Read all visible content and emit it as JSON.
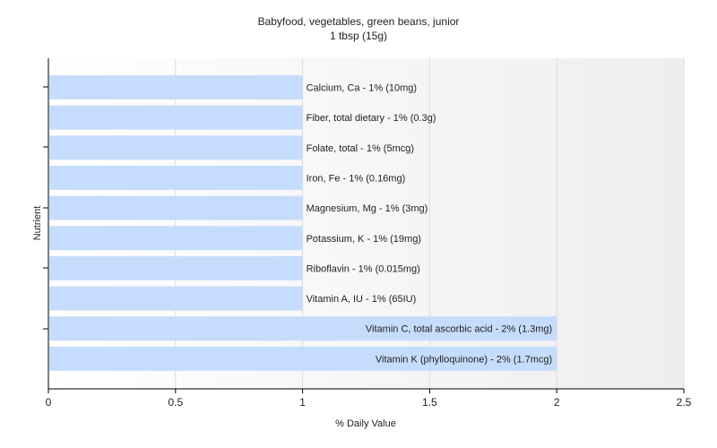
{
  "chart_data": {
    "type": "bar",
    "orientation": "horizontal",
    "title": "Babyfood, vegetables, green beans, junior",
    "subtitle": "1 tbsp (15g)",
    "xlabel": "% Daily Value",
    "ylabel": "Nutrient",
    "xlim": [
      0,
      2.5
    ],
    "xticks": [
      "0",
      "0.5",
      "1",
      "1.5",
      "2",
      "2.5"
    ],
    "grid": true,
    "bar_color": "#c6dcfc",
    "categories": [
      "Calcium, Ca - 1% (10mg)",
      "Fiber, total dietary - 1% (0.3g)",
      "Folate, total - 1% (5mcg)",
      "Iron, Fe - 1% (0.16mg)",
      "Magnesium, Mg - 1% (3mg)",
      "Potassium, K - 1% (19mg)",
      "Riboflavin - 1% (0.015mg)",
      "Vitamin A, IU - 1% (65IU)",
      "Vitamin C, total ascorbic acid - 2% (1.3mg)",
      "Vitamin K (phylloquinone) - 2% (1.7mcg)"
    ],
    "values": [
      1,
      1,
      1,
      1,
      1,
      1,
      1,
      1,
      2,
      2
    ]
  }
}
